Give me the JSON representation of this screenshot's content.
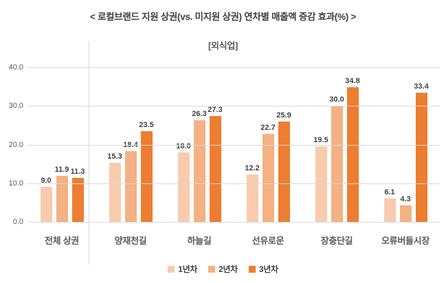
{
  "title": "< 로컬브랜드 지원 상권(vs. 미지원 상권) 연차별 매출액 증감 효과(%) >",
  "subtitle": "[외식업]",
  "chart_data": {
    "type": "bar",
    "title": "< 로컬브랜드 지원 상권(vs. 미지원 상권) 연차별 매출액 증감 효과(%) >",
    "subtitle": "[외식업]",
    "categories": [
      "전체 상권",
      "양재천길",
      "하늘길",
      "선유로운",
      "장충단길",
      "오류버들시장"
    ],
    "series": [
      {
        "name": "1년차",
        "color": "#F8CBAD",
        "values": [
          9.0,
          15.3,
          18.0,
          12.2,
          19.5,
          6.1
        ]
      },
      {
        "name": "2년차",
        "color": "#F4B183",
        "values": [
          11.9,
          18.4,
          26.3,
          22.7,
          30.0,
          4.3
        ]
      },
      {
        "name": "3년차",
        "color": "#ED7D31",
        "values": [
          11.3,
          23.5,
          27.3,
          25.9,
          34.8,
          33.4
        ]
      }
    ],
    "ylim": [
      0,
      40
    ],
    "ytick_step": 10,
    "ytick_decimals": 1,
    "value_label_decimals": 1,
    "grid": true,
    "legend_position": "bottom",
    "separator_after_category": "전체 상권"
  },
  "colors": {
    "grid": "#d9d9d9",
    "title_text": "#404040",
    "axis_text": "#595959",
    "value_label_text": "#404040"
  }
}
